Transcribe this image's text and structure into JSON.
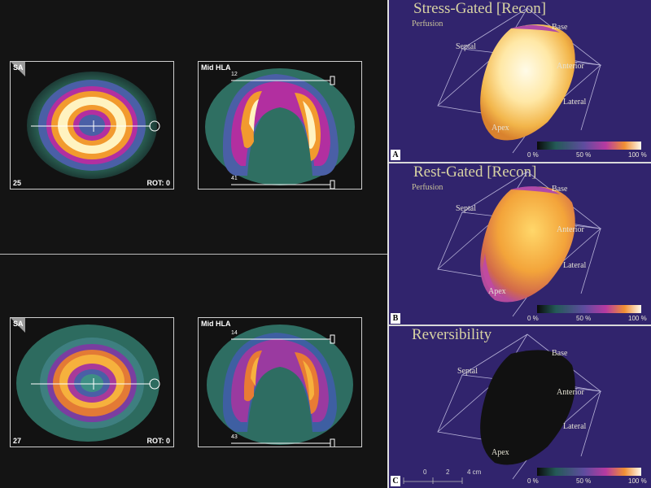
{
  "left_top": {
    "sa": {
      "label": "SA",
      "slice": "25",
      "rot": "ROT: 0"
    },
    "hla": {
      "label": "Mid HLA",
      "top_num": "12",
      "bottom_num": "41"
    }
  },
  "left_bottom": {
    "sa": {
      "label": "SA",
      "slice": "27",
      "rot": "ROT: 0"
    },
    "hla": {
      "label": "Mid HLA",
      "top_num": "14",
      "bottom_num": "43"
    }
  },
  "panels": [
    {
      "letter": "A",
      "title": "Stress-Gated [Recon]",
      "subtitle": "Perfusion",
      "labels": {
        "base": "Base",
        "septal": "Septal",
        "anterior": "Anterior",
        "lateral": "Lateral",
        "apex": "Apex"
      },
      "colorbar": {
        "min": "0 %",
        "mid": "50 %",
        "max": "100 %"
      }
    },
    {
      "letter": "B",
      "title": "Rest-Gated [Recon]",
      "subtitle": "Perfusion",
      "labels": {
        "base": "Base",
        "septal": "Septal",
        "anterior": "Anterior",
        "lateral": "Lateral",
        "apex": "Apex"
      },
      "colorbar": {
        "min": "0 %",
        "mid": "50 %",
        "max": "100 %"
      }
    },
    {
      "letter": "C",
      "title": "Reversibility",
      "subtitle": "",
      "labels": {
        "base": "Base",
        "septal": "Septal",
        "anterior": "Anterior",
        "lateral": "Lateral",
        "apex": "Apex"
      },
      "colorbar": {
        "min": "0 %",
        "mid": "50 %",
        "max": "100 %"
      }
    }
  ],
  "scale_bar": {
    "t0": "0",
    "t1": "2",
    "t2": "4 cm"
  },
  "colors": {
    "panel_bg": "#31246d",
    "grid": "#b7b2d8"
  }
}
